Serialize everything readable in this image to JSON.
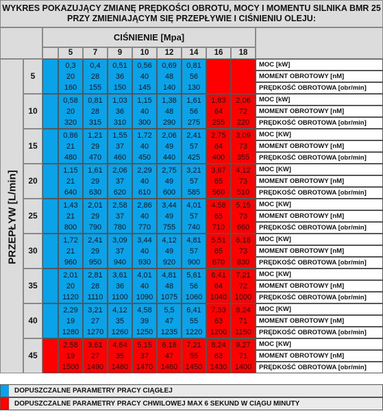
{
  "title": {
    "line1": "WYKRES POKAZUJĄCY ZMIANĘ PRĘDKOŚCI OBROTU, MOCY I MOMENTU SILNIKA BMR 25",
    "line2": "PRZY ZMIENIAJĄCYM SIĘ PRZEPŁYWIE I CIŚNIENIU OLEJU:"
  },
  "pressure_header": "CIŚNIENIE  [Mpa]",
  "flow_header": "PRZEPŁYW [L/min]",
  "pressures": [
    "5",
    "7",
    "9",
    "10",
    "12",
    "14",
    "16",
    "18"
  ],
  "row_labels": [
    "MOC [kW]",
    "MOMENT OBROTOWY [nM]",
    "PRĘDKOŚĆ OBROTOWA [obr/min]"
  ],
  "row_labels_alt": [
    "MOC [KW]",
    "MOMENT OBROTOWY [nM]",
    "PRĘDKOŚĆ OBROTOWA [obr/min]"
  ],
  "colors": {
    "continuous": "#0aa3ea",
    "intermittent": "#ff0000",
    "header": "#dcdcdc"
  },
  "flows": [
    {
      "flow": "5",
      "cells": [
        {
          "c": "blue",
          "v": [
            "0,3",
            "20",
            "160"
          ]
        },
        {
          "c": "blue",
          "v": [
            "0,4",
            "28",
            "155"
          ]
        },
        {
          "c": "blue",
          "v": [
            "0,51",
            "36",
            "150"
          ]
        },
        {
          "c": "blue",
          "v": [
            "0,56",
            "40",
            "145"
          ]
        },
        {
          "c": "blue",
          "v": [
            "0,69",
            "48",
            "140"
          ]
        },
        {
          "c": "blue",
          "v": [
            "0,81",
            "56",
            "130"
          ]
        },
        {
          "c": "red",
          "v": [
            "",
            "",
            ""
          ]
        },
        {
          "c": "red",
          "v": [
            "",
            "",
            ""
          ]
        }
      ]
    },
    {
      "flow": "10",
      "cells": [
        {
          "c": "blue",
          "v": [
            "0,58",
            "20",
            "320"
          ]
        },
        {
          "c": "blue",
          "v": [
            "0,81",
            "28",
            "315"
          ]
        },
        {
          "c": "blue",
          "v": [
            "1,03",
            "36",
            "310"
          ]
        },
        {
          "c": "blue",
          "v": [
            "1,15",
            "40",
            "300"
          ]
        },
        {
          "c": "blue",
          "v": [
            "1,38",
            "48",
            "290"
          ]
        },
        {
          "c": "blue",
          "v": [
            "1,61",
            "56",
            "275"
          ]
        },
        {
          "c": "red",
          "v": [
            "1,83",
            "64",
            "255"
          ]
        },
        {
          "c": "red",
          "v": [
            "2,06",
            "72",
            "220"
          ]
        }
      ]
    },
    {
      "flow": "15",
      "cells": [
        {
          "c": "blue",
          "v": [
            "0,86",
            "21",
            "480"
          ]
        },
        {
          "c": "blue",
          "v": [
            "1,21",
            "29",
            "470"
          ]
        },
        {
          "c": "blue",
          "v": [
            "1,55",
            "37",
            "460"
          ]
        },
        {
          "c": "blue",
          "v": [
            "1,72",
            "40",
            "450"
          ]
        },
        {
          "c": "blue",
          "v": [
            "2,06",
            "49",
            "440"
          ]
        },
        {
          "c": "blue",
          "v": [
            "2,41",
            "57",
            "425"
          ]
        },
        {
          "c": "red",
          "v": [
            "2,75",
            "64",
            "400"
          ]
        },
        {
          "c": "red",
          "v": [
            "3,09",
            "73",
            "355"
          ]
        }
      ]
    },
    {
      "flow": "20",
      "cells": [
        {
          "c": "blue",
          "v": [
            "1,15",
            "21",
            "640"
          ]
        },
        {
          "c": "blue",
          "v": [
            "1,61",
            "29",
            "630"
          ]
        },
        {
          "c": "blue",
          "v": [
            "2,06",
            "37",
            "620"
          ]
        },
        {
          "c": "blue",
          "v": [
            "2,29",
            "40",
            "610"
          ]
        },
        {
          "c": "blue",
          "v": [
            "2,75",
            "49",
            "600"
          ]
        },
        {
          "c": "blue",
          "v": [
            "3,21",
            "57",
            "585"
          ]
        },
        {
          "c": "red",
          "v": [
            "3,67",
            "65",
            "560"
          ]
        },
        {
          "c": "red",
          "v": [
            "4,12",
            "73",
            "510"
          ]
        }
      ]
    },
    {
      "flow": "25",
      "cells": [
        {
          "c": "blue",
          "v": [
            "1,43",
            "21",
            "800"
          ]
        },
        {
          "c": "blue",
          "v": [
            "2,01",
            "29",
            "790"
          ]
        },
        {
          "c": "blue",
          "v": [
            "2,58",
            "37",
            "780"
          ]
        },
        {
          "c": "blue",
          "v": [
            "2,86",
            "40",
            "770"
          ]
        },
        {
          "c": "blue",
          "v": [
            "3,44",
            "49",
            "755"
          ]
        },
        {
          "c": "blue",
          "v": [
            "4,01",
            "57",
            "740"
          ]
        },
        {
          "c": "red",
          "v": [
            "4,58",
            "65",
            "710"
          ]
        },
        {
          "c": "red",
          "v": [
            "5,15",
            "73",
            "660"
          ]
        }
      ]
    },
    {
      "flow": "30",
      "cells": [
        {
          "c": "blue",
          "v": [
            "1,72",
            "21",
            "960"
          ]
        },
        {
          "c": "blue",
          "v": [
            "2,41",
            "29",
            "950"
          ]
        },
        {
          "c": "blue",
          "v": [
            "3,09",
            "37",
            "940"
          ]
        },
        {
          "c": "blue",
          "v": [
            "3,44",
            "40",
            "930"
          ]
        },
        {
          "c": "blue",
          "v": [
            "4,12",
            "49",
            "920"
          ]
        },
        {
          "c": "blue",
          "v": [
            "4,81",
            "57",
            "900"
          ]
        },
        {
          "c": "red",
          "v": [
            "5,51",
            "65",
            "870"
          ]
        },
        {
          "c": "red",
          "v": [
            "6,18",
            "73",
            "830"
          ]
        }
      ]
    },
    {
      "flow": "35",
      "cells": [
        {
          "c": "blue",
          "v": [
            "2,01",
            "20",
            "1120"
          ]
        },
        {
          "c": "blue",
          "v": [
            "2,81",
            "28",
            "1110"
          ]
        },
        {
          "c": "blue",
          "v": [
            "3,61",
            "36",
            "1100"
          ]
        },
        {
          "c": "blue",
          "v": [
            "4,01",
            "40",
            "1090"
          ]
        },
        {
          "c": "blue",
          "v": [
            "4,81",
            "48",
            "1075"
          ]
        },
        {
          "c": "blue",
          "v": [
            "5,61",
            "56",
            "1060"
          ]
        },
        {
          "c": "red",
          "v": [
            "6,41",
            "64",
            "1040"
          ]
        },
        {
          "c": "red",
          "v": [
            "7,21",
            "72",
            "1000"
          ]
        }
      ]
    },
    {
      "flow": "40",
      "cells": [
        {
          "c": "blue",
          "v": [
            "2,29",
            "19",
            "1280"
          ]
        },
        {
          "c": "blue",
          "v": [
            "3,21",
            "27",
            "1270"
          ]
        },
        {
          "c": "blue",
          "v": [
            "4,12",
            "35",
            "1260"
          ]
        },
        {
          "c": "blue",
          "v": [
            "4,58",
            "39",
            "1250"
          ]
        },
        {
          "c": "blue",
          "v": [
            "5,5",
            "47",
            "1235"
          ]
        },
        {
          "c": "blue",
          "v": [
            "6,41",
            "55",
            "1220"
          ]
        },
        {
          "c": "red",
          "v": [
            "7,33",
            "63",
            "1200"
          ]
        },
        {
          "c": "red",
          "v": [
            "8,24",
            "71",
            "1150"
          ]
        }
      ]
    },
    {
      "flow": "45",
      "cells": [
        {
          "c": "red",
          "v": [
            "2,58",
            "19",
            "1500"
          ]
        },
        {
          "c": "red",
          "v": [
            "3,61",
            "27",
            "1490"
          ]
        },
        {
          "c": "red",
          "v": [
            "4,64",
            "35",
            "1480"
          ]
        },
        {
          "c": "red",
          "v": [
            "5,15",
            "37",
            "1470"
          ]
        },
        {
          "c": "red",
          "v": [
            "6,18",
            "47",
            "1460"
          ]
        },
        {
          "c": "red",
          "v": [
            "7,21",
            "55",
            "1450"
          ]
        },
        {
          "c": "red",
          "v": [
            "8,24",
            "63",
            "1430"
          ]
        },
        {
          "c": "red",
          "v": [
            "9,27",
            "71",
            "1400"
          ]
        }
      ]
    }
  ],
  "legend": {
    "continuous": "DOPUSZCZALNE PARAMETRY PRACY CIĄGŁEJ",
    "intermittent": "DOPUSZCZALNE PARAMETRY PRACY CHWILOWEJ MAX 6 SEKUND W CIĄGU MINUTY"
  }
}
